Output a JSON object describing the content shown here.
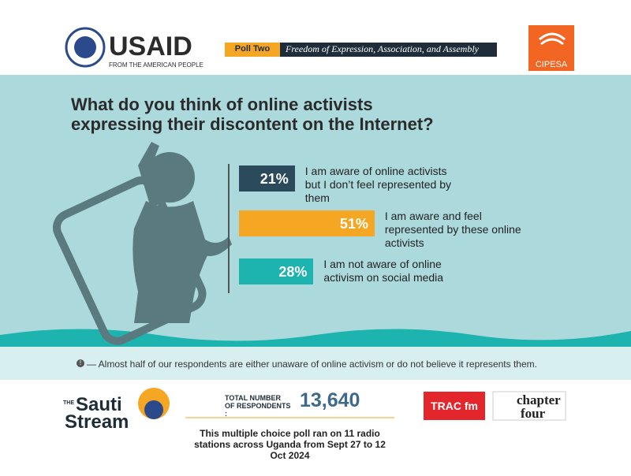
{
  "header": {
    "usaid": "USAID",
    "usaid_sub": "FROM THE AMERICAN PEOPLE",
    "poll_label": "Poll Two",
    "poll_topic": "Freedom of Expression, Association, and Assembly",
    "cipesa": "CIPESA"
  },
  "chart_data": {
    "type": "bar",
    "orientation": "horizontal",
    "title": "What do you think of online activists expressing their discontent on the Internet?",
    "categories": [
      "I am aware of online activists but I don’t feel represented by them",
      "I am aware and feel represented by these online activists",
      "I am not aware of online activism on social media"
    ],
    "values": [
      21,
      51,
      28
    ],
    "value_labels": [
      "21%",
      "51%",
      "28%"
    ],
    "colors": [
      "#2b4a5c",
      "#f5a623",
      "#1db3ae"
    ]
  },
  "note": {
    "icon": "!",
    "text": "— Almost half of our respondents are either unaware of online activism or do not believe it represents them."
  },
  "footer": {
    "sauti_the": "THE",
    "sauti_1": "Sauti",
    "sauti_2": "Stream",
    "total_label": "TOTAL NUMBER OF RESPONDENTS :",
    "total_value": "13,640",
    "method": "This multiple choice poll ran on 11 radio stations across Uganda from Sept 27 to 12 Oct 2024",
    "trac": "TRAC fm",
    "chapter_1": "chapter",
    "chapter_2": "four"
  }
}
